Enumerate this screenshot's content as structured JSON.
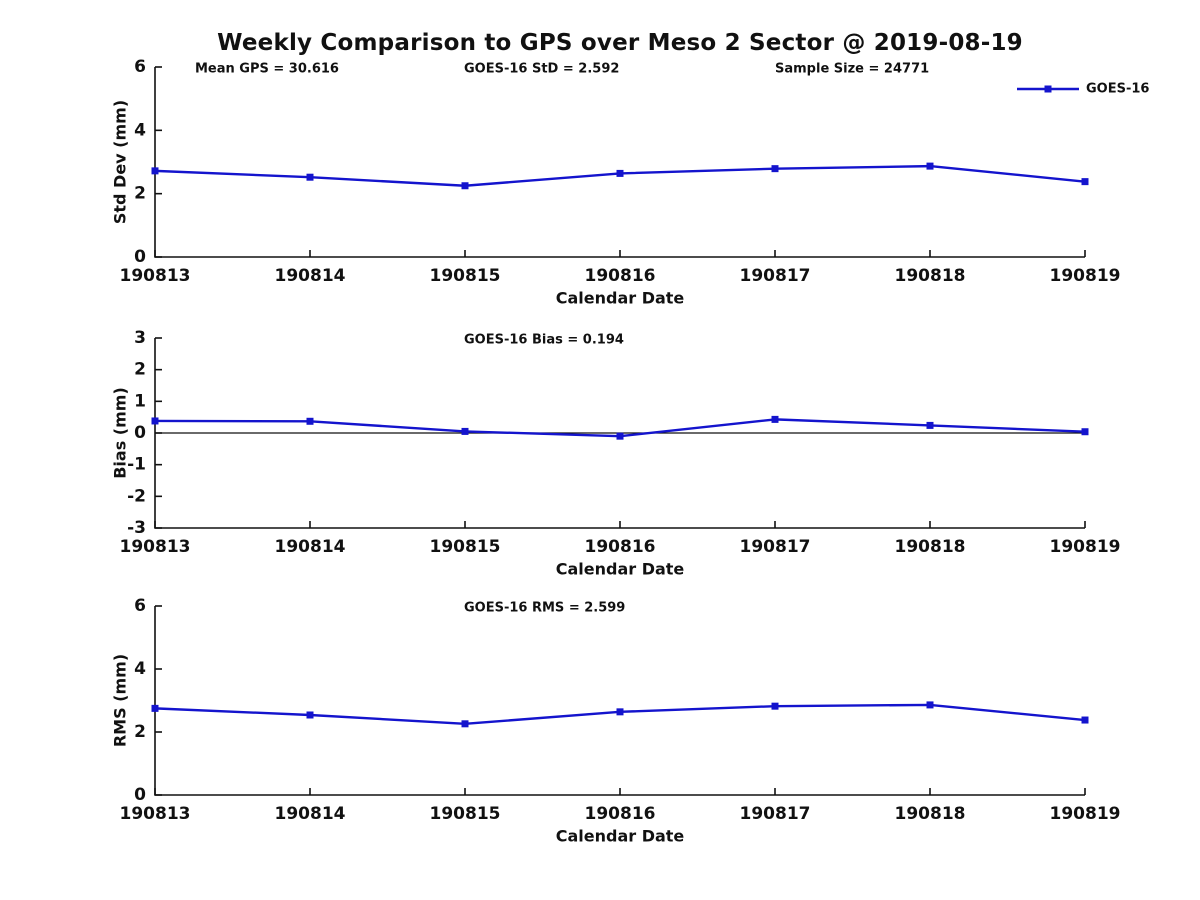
{
  "title": "Weekly Comparison to GPS over Meso 2 Sector @ 2019-08-19",
  "accent_color": "#1414CD",
  "axis_color": "#111111",
  "chart_data": [
    {
      "type": "line",
      "name": "std-dev",
      "ylabel": "Std Dev (mm)",
      "xlabel": "Calendar Date",
      "categories": [
        "190813",
        "190814",
        "190815",
        "190816",
        "190817",
        "190818",
        "190819"
      ],
      "series": [
        {
          "name": "GOES-16",
          "color": "#1414CD",
          "marker": "square",
          "values": [
            2.72,
            2.52,
            2.25,
            2.64,
            2.79,
            2.87,
            2.38
          ]
        }
      ],
      "ylim": [
        0,
        6
      ],
      "yticks": [
        0,
        2,
        4,
        6
      ],
      "grid": false,
      "zero_line": false,
      "legend": {
        "show": true,
        "position": "top-right",
        "entries": [
          "GOES-16"
        ]
      },
      "annotations": [
        {
          "text": "Mean GPS = 30.616",
          "x": 195
        },
        {
          "text": "GOES-16 StD = 2.592",
          "x": 464
        },
        {
          "text": "Sample Size = 24771",
          "x": 775
        }
      ]
    },
    {
      "type": "line",
      "name": "bias",
      "ylabel": "Bias (mm)",
      "xlabel": "Calendar Date",
      "categories": [
        "190813",
        "190814",
        "190815",
        "190816",
        "190817",
        "190818",
        "190819"
      ],
      "series": [
        {
          "name": "GOES-16",
          "color": "#1414CD",
          "marker": "square",
          "values": [
            0.38,
            0.37,
            0.05,
            -0.1,
            0.43,
            0.24,
            0.04
          ]
        }
      ],
      "ylim": [
        -3,
        3
      ],
      "yticks": [
        -3,
        -2,
        -1,
        0,
        1,
        2,
        3
      ],
      "grid": false,
      "zero_line": true,
      "legend": {
        "show": false
      },
      "annotations": [
        {
          "text": "GOES-16 Bias  = 0.194",
          "x": 464
        }
      ]
    },
    {
      "type": "line",
      "name": "rms",
      "ylabel": "RMS (mm)",
      "xlabel": "Calendar Date",
      "categories": [
        "190813",
        "190814",
        "190815",
        "190816",
        "190817",
        "190818",
        "190819"
      ],
      "series": [
        {
          "name": "GOES-16",
          "color": "#1414CD",
          "marker": "square",
          "values": [
            2.75,
            2.54,
            2.26,
            2.64,
            2.82,
            2.86,
            2.38
          ]
        }
      ],
      "ylim": [
        0,
        6
      ],
      "yticks": [
        0,
        2,
        4,
        6
      ],
      "grid": false,
      "zero_line": false,
      "legend": {
        "show": false
      },
      "annotations": [
        {
          "text": "GOES-16 RMS = 2.599",
          "x": 464
        }
      ]
    }
  ]
}
